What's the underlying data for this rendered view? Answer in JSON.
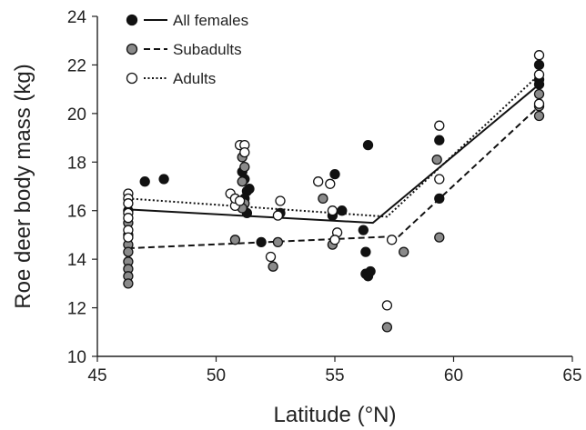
{
  "chart_data": {
    "type": "scatter",
    "xlabel": "Latitude (°N)",
    "ylabel": "Roe deer body mass (kg)",
    "xlim": [
      45,
      65
    ],
    "ylim": [
      10,
      24
    ],
    "xticks": [
      45,
      50,
      55,
      60,
      65
    ],
    "yticks": [
      10,
      12,
      14,
      16,
      18,
      20,
      22,
      24
    ],
    "grid": false,
    "legend_position": "top-left",
    "series": [
      {
        "name": "All females",
        "marker": "filled-black",
        "color": "#111111",
        "line_style": "solid",
        "fit_line": [
          [
            46.3,
            16.05
          ],
          [
            56.6,
            15.5
          ],
          [
            63.6,
            21.2
          ]
        ],
        "points": [
          [
            46.3,
            16.0
          ],
          [
            47.0,
            17.2
          ],
          [
            47.8,
            17.3
          ],
          [
            50.9,
            16.4
          ],
          [
            51.1,
            17.6
          ],
          [
            51.2,
            17.3
          ],
          [
            51.3,
            16.8
          ],
          [
            51.2,
            16.5
          ],
          [
            51.4,
            16.9
          ],
          [
            51.3,
            15.9
          ],
          [
            52.7,
            15.9
          ],
          [
            51.9,
            14.7
          ],
          [
            55.0,
            17.5
          ],
          [
            54.9,
            15.8
          ],
          [
            55.3,
            16.0
          ],
          [
            56.4,
            18.7
          ],
          [
            56.3,
            14.3
          ],
          [
            56.2,
            15.2
          ],
          [
            56.3,
            13.4
          ],
          [
            56.4,
            13.3
          ],
          [
            56.5,
            13.5
          ],
          [
            59.4,
            18.9
          ],
          [
            59.4,
            16.5
          ],
          [
            63.6,
            22.0
          ],
          [
            63.6,
            21.4
          ],
          [
            63.6,
            21.2
          ]
        ]
      },
      {
        "name": "Subadults",
        "marker": "filled-gray",
        "color": "#8a8a8a",
        "line_style": "dashed",
        "fit_line": [
          [
            46.3,
            14.45
          ],
          [
            57.7,
            14.95
          ],
          [
            63.6,
            20.3
          ]
        ],
        "points": [
          [
            46.3,
            15.5
          ],
          [
            46.3,
            15.0
          ],
          [
            46.3,
            14.6
          ],
          [
            46.3,
            14.3
          ],
          [
            46.3,
            13.9
          ],
          [
            46.3,
            13.6
          ],
          [
            46.3,
            13.3
          ],
          [
            46.3,
            13.0
          ],
          [
            50.8,
            14.8
          ],
          [
            51.1,
            18.2
          ],
          [
            51.2,
            17.8
          ],
          [
            51.1,
            17.2
          ],
          [
            51.2,
            16.3
          ],
          [
            51.1,
            16.1
          ],
          [
            52.6,
            14.7
          ],
          [
            52.4,
            13.7
          ],
          [
            54.5,
            16.5
          ],
          [
            54.9,
            14.6
          ],
          [
            57.9,
            14.3
          ],
          [
            57.2,
            11.2
          ],
          [
            59.3,
            18.1
          ],
          [
            59.4,
            14.9
          ],
          [
            63.6,
            20.8
          ],
          [
            63.6,
            20.3
          ],
          [
            63.6,
            19.9
          ]
        ]
      },
      {
        "name": "Adults",
        "marker": "open",
        "color": "#111111",
        "line_style": "dotted",
        "fit_line": [
          [
            46.3,
            16.5
          ],
          [
            57.2,
            15.75
          ],
          [
            63.6,
            21.6
          ]
        ],
        "points": [
          [
            46.3,
            16.7
          ],
          [
            46.3,
            16.5
          ],
          [
            46.3,
            16.3
          ],
          [
            46.3,
            15.9
          ],
          [
            46.3,
            15.7
          ],
          [
            46.3,
            15.2
          ],
          [
            46.3,
            14.9
          ],
          [
            50.6,
            16.7
          ],
          [
            50.8,
            16.2
          ],
          [
            50.8,
            16.5
          ],
          [
            51.0,
            18.7
          ],
          [
            51.2,
            18.7
          ],
          [
            51.2,
            18.4
          ],
          [
            51.0,
            16.4
          ],
          [
            52.7,
            16.4
          ],
          [
            52.3,
            14.1
          ],
          [
            52.6,
            15.8
          ],
          [
            54.3,
            17.2
          ],
          [
            54.8,
            17.1
          ],
          [
            54.9,
            16.0
          ],
          [
            55.1,
            15.1
          ],
          [
            55.0,
            14.8
          ],
          [
            57.4,
            14.8
          ],
          [
            57.2,
            12.1
          ],
          [
            59.4,
            19.5
          ],
          [
            59.4,
            17.3
          ],
          [
            63.6,
            22.4
          ],
          [
            63.6,
            21.6
          ],
          [
            63.6,
            20.4
          ]
        ]
      }
    ]
  }
}
